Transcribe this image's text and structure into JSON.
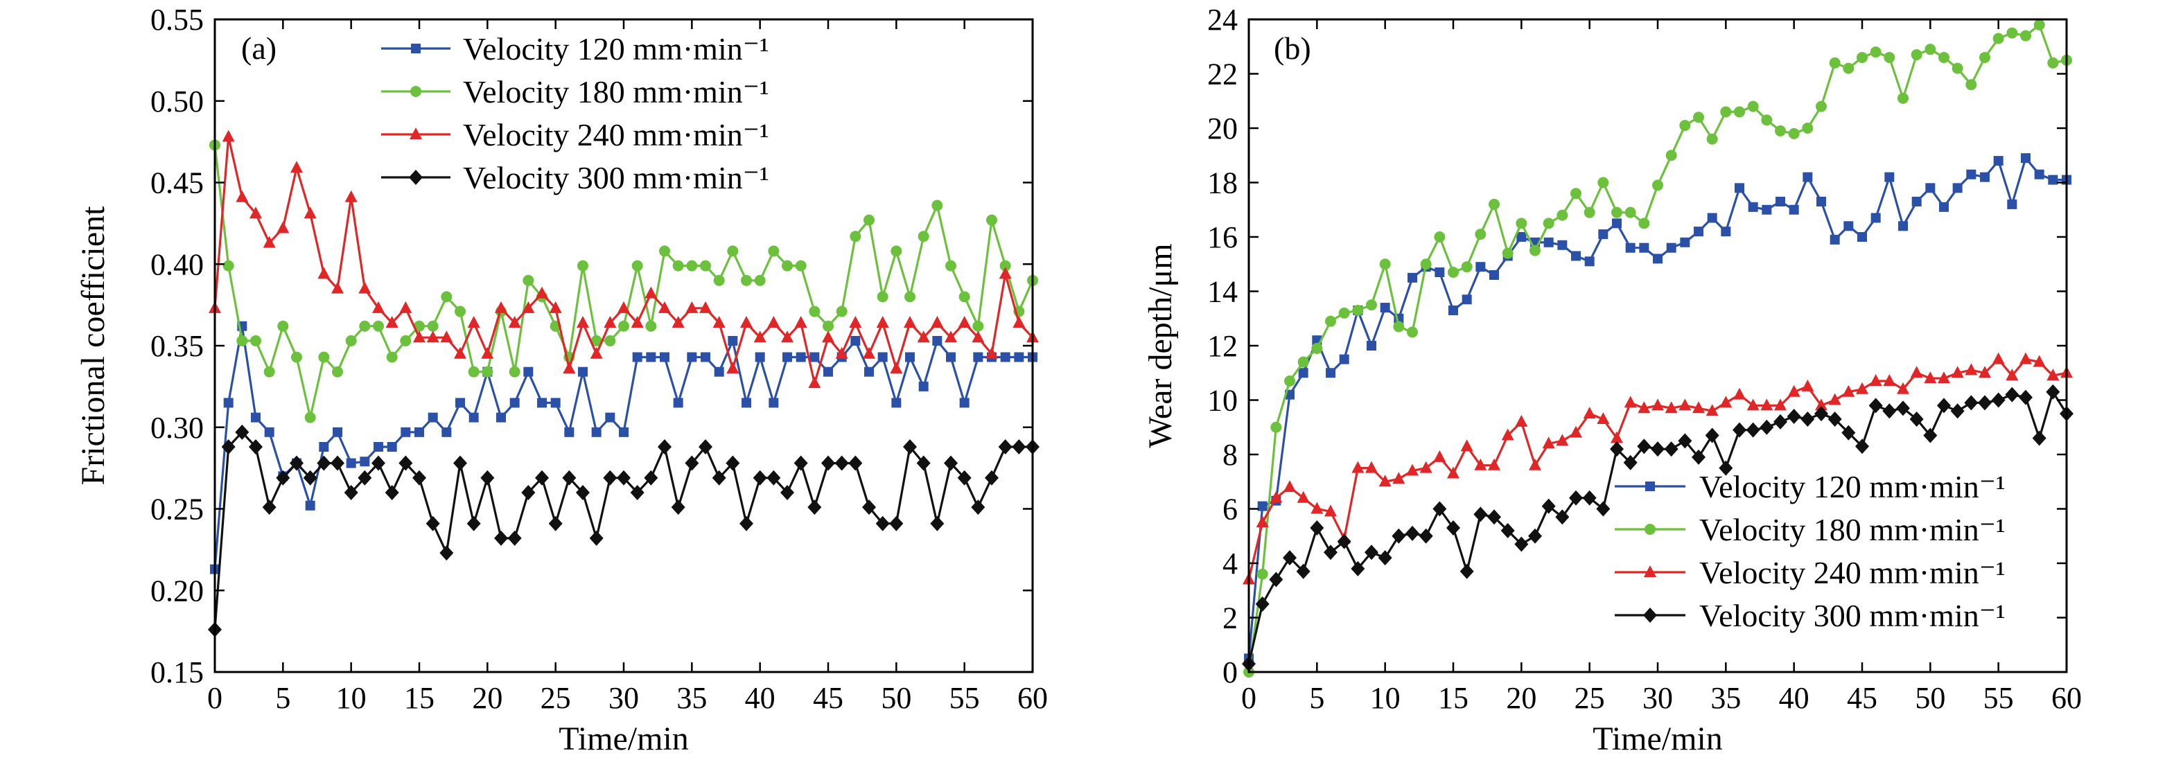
{
  "chart_data": [
    {
      "type": "line",
      "panel_label": "(a)",
      "xlabel": "Time/min",
      "ylabel": "Frictional coefficient",
      "xlim": [
        0,
        60
      ],
      "ylim": [
        0.15,
        0.55
      ],
      "xticks": [
        0,
        5,
        10,
        15,
        20,
        25,
        30,
        35,
        40,
        45,
        50,
        55,
        60
      ],
      "yticks": [
        0.15,
        0.2,
        0.25,
        0.3,
        0.35,
        0.4,
        0.45,
        0.5,
        0.55
      ],
      "ytick_labels": [
        "0.15",
        "0.20",
        "0.25",
        "0.30",
        "0.35",
        "0.40",
        "0.45",
        "0.50",
        "0.55"
      ],
      "legend_position": "top-center",
      "series": [
        {
          "name": "Velocity 120 mm·min⁻¹",
          "color": "#2a50a8",
          "marker": "square",
          "values": [
            0.213,
            0.315,
            0.362,
            0.306,
            0.297,
            0.27,
            0.278,
            0.252,
            0.288,
            0.297,
            0.278,
            0.279,
            0.288,
            0.288,
            0.297,
            0.297,
            0.306,
            0.297,
            0.315,
            0.306,
            0.334,
            0.306,
            0.315,
            0.334,
            0.315,
            0.315,
            0.297,
            0.334,
            0.297,
            0.306,
            0.297,
            0.343,
            0.343,
            0.343,
            0.315,
            0.343,
            0.343,
            0.334,
            0.353,
            0.315,
            0.343,
            0.315,
            0.343,
            0.343,
            0.343,
            0.334,
            0.343,
            0.353,
            0.334,
            0.343,
            0.315,
            0.343,
            0.325,
            0.353,
            0.343,
            0.315,
            0.343,
            0.343,
            0.343,
            0.343,
            0.343
          ]
        },
        {
          "name": "Velocity 180 mm·min⁻¹",
          "color": "#6cc13c",
          "marker": "circle",
          "values": [
            0.473,
            0.399,
            0.353,
            0.353,
            0.334,
            0.362,
            0.343,
            0.306,
            0.343,
            0.334,
            0.353,
            0.362,
            0.362,
            0.343,
            0.353,
            0.362,
            0.362,
            0.38,
            0.371,
            0.334,
            0.334,
            0.371,
            0.334,
            0.39,
            0.38,
            0.362,
            0.343,
            0.399,
            0.353,
            0.353,
            0.362,
            0.399,
            0.362,
            0.408,
            0.399,
            0.399,
            0.399,
            0.39,
            0.408,
            0.39,
            0.39,
            0.408,
            0.399,
            0.399,
            0.371,
            0.362,
            0.371,
            0.417,
            0.427,
            0.38,
            0.408,
            0.38,
            0.417,
            0.436,
            0.399,
            0.38,
            0.362,
            0.427,
            0.399,
            0.371,
            0.39
          ]
        },
        {
          "name": "Velocity 240 mm·min⁻¹",
          "color": "#e02626",
          "marker": "triangle",
          "values": [
            0.373,
            0.478,
            0.441,
            0.431,
            0.413,
            0.422,
            0.459,
            0.431,
            0.394,
            0.385,
            0.441,
            0.385,
            0.373,
            0.364,
            0.373,
            0.355,
            0.355,
            0.355,
            0.345,
            0.364,
            0.345,
            0.373,
            0.364,
            0.373,
            0.382,
            0.373,
            0.336,
            0.364,
            0.345,
            0.364,
            0.373,
            0.364,
            0.382,
            0.373,
            0.364,
            0.373,
            0.373,
            0.364,
            0.336,
            0.364,
            0.355,
            0.364,
            0.355,
            0.364,
            0.327,
            0.355,
            0.345,
            0.364,
            0.345,
            0.364,
            0.336,
            0.364,
            0.355,
            0.364,
            0.355,
            0.364,
            0.355,
            0.345,
            0.394,
            0.364,
            0.355
          ]
        },
        {
          "name": "Velocity 300 mm·min⁻¹",
          "color": "#111111",
          "marker": "diamond",
          "values": [
            0.176,
            0.288,
            0.297,
            0.288,
            0.251,
            0.269,
            0.278,
            0.269,
            0.278,
            0.278,
            0.26,
            0.269,
            0.278,
            0.26,
            0.278,
            0.269,
            0.241,
            0.223,
            0.278,
            0.241,
            0.269,
            0.232,
            0.232,
            0.26,
            0.269,
            0.241,
            0.269,
            0.26,
            0.232,
            0.269,
            0.269,
            0.26,
            0.269,
            0.288,
            0.251,
            0.278,
            0.288,
            0.269,
            0.278,
            0.241,
            0.269,
            0.269,
            0.26,
            0.278,
            0.251,
            0.278,
            0.278,
            0.278,
            0.251,
            0.241,
            0.241,
            0.288,
            0.278,
            0.241,
            0.278,
            0.269,
            0.251,
            0.269,
            0.288,
            0.288,
            0.288
          ]
        }
      ]
    },
    {
      "type": "line",
      "panel_label": "(b)",
      "xlabel": "Time/min",
      "ylabel": "Wear depth/μm",
      "xlim": [
        0,
        60
      ],
      "ylim": [
        0,
        24
      ],
      "xticks": [
        0,
        5,
        10,
        15,
        20,
        25,
        30,
        35,
        40,
        45,
        50,
        55,
        60
      ],
      "yticks": [
        0,
        2,
        4,
        6,
        8,
        10,
        12,
        14,
        16,
        18,
        20,
        22,
        24
      ],
      "ytick_labels": [
        "0",
        "2",
        "4",
        "6",
        "8",
        "10",
        "12",
        "14",
        "16",
        "18",
        "20",
        "22",
        "24"
      ],
      "legend_position": "bottom-right",
      "series": [
        {
          "name": "Velocity 120 mm·min⁻¹",
          "color": "#2a50a8",
          "marker": "square",
          "values": [
            0.5,
            6.1,
            6.3,
            10.2,
            11.0,
            12.2,
            11.0,
            11.5,
            13.3,
            12.0,
            13.4,
            13.0,
            14.5,
            14.9,
            14.7,
            13.3,
            13.7,
            14.9,
            14.6,
            15.3,
            16.0,
            15.8,
            15.8,
            15.7,
            15.3,
            15.1,
            16.1,
            16.5,
            15.6,
            15.6,
            15.2,
            15.6,
            15.8,
            16.2,
            16.7,
            16.2,
            17.8,
            17.1,
            17.0,
            17.3,
            17.0,
            18.2,
            17.3,
            15.9,
            16.4,
            16.0,
            16.7,
            18.2,
            16.4,
            17.3,
            17.8,
            17.1,
            17.8,
            18.3,
            18.2,
            18.8,
            17.2,
            18.9,
            18.3,
            18.1,
            18.1
          ]
        },
        {
          "name": "Velocity 180 mm·min⁻¹",
          "color": "#6cc13c",
          "marker": "circle",
          "values": [
            0.0,
            3.6,
            9.0,
            10.7,
            11.4,
            11.9,
            12.9,
            13.2,
            13.3,
            13.5,
            15.0,
            12.7,
            12.5,
            15.0,
            16.0,
            14.7,
            14.9,
            16.1,
            17.2,
            15.4,
            16.5,
            15.5,
            16.5,
            16.8,
            17.6,
            16.9,
            18.0,
            16.9,
            16.9,
            16.5,
            17.9,
            19.0,
            20.1,
            20.4,
            19.6,
            20.6,
            20.6,
            20.8,
            20.3,
            19.9,
            19.8,
            20.0,
            20.8,
            22.4,
            22.2,
            22.6,
            22.8,
            22.6,
            21.1,
            22.7,
            22.9,
            22.6,
            22.2,
            21.6,
            22.6,
            23.3,
            23.5,
            23.4,
            23.8,
            22.4,
            22.5
          ]
        },
        {
          "name": "Velocity 240 mm·min⁻¹",
          "color": "#e02626",
          "marker": "triangle",
          "values": [
            3.4,
            5.5,
            6.4,
            6.8,
            6.4,
            6.0,
            5.9,
            4.9,
            7.5,
            7.5,
            7.0,
            7.1,
            7.4,
            7.5,
            7.9,
            7.3,
            8.3,
            7.6,
            7.6,
            8.7,
            9.2,
            7.6,
            8.4,
            8.5,
            8.8,
            9.5,
            9.3,
            8.6,
            9.9,
            9.7,
            9.8,
            9.7,
            9.8,
            9.7,
            9.6,
            9.9,
            10.2,
            9.8,
            9.8,
            9.8,
            10.3,
            10.5,
            9.8,
            10.0,
            10.3,
            10.4,
            10.7,
            10.7,
            10.4,
            11.0,
            10.8,
            10.8,
            11.0,
            11.1,
            11.0,
            11.5,
            10.9,
            11.5,
            11.4,
            10.9,
            11.0
          ]
        },
        {
          "name": "Velocity 300 mm·min⁻¹",
          "color": "#111111",
          "marker": "diamond",
          "values": [
            0.3,
            2.5,
            3.4,
            4.2,
            3.7,
            5.3,
            4.4,
            4.8,
            3.8,
            4.4,
            4.2,
            5.0,
            5.1,
            5.0,
            6.0,
            5.3,
            3.7,
            5.8,
            5.7,
            5.2,
            4.7,
            5.0,
            6.1,
            5.7,
            6.4,
            6.4,
            6.0,
            8.2,
            7.7,
            8.3,
            8.2,
            8.2,
            8.5,
            7.9,
            8.7,
            7.5,
            8.9,
            8.9,
            9.0,
            9.2,
            9.4,
            9.3,
            9.5,
            9.3,
            8.8,
            8.3,
            9.8,
            9.6,
            9.7,
            9.3,
            8.7,
            9.8,
            9.6,
            9.9,
            9.9,
            10.0,
            10.2,
            10.1,
            8.6,
            10.3,
            9.5
          ]
        }
      ]
    }
  ]
}
